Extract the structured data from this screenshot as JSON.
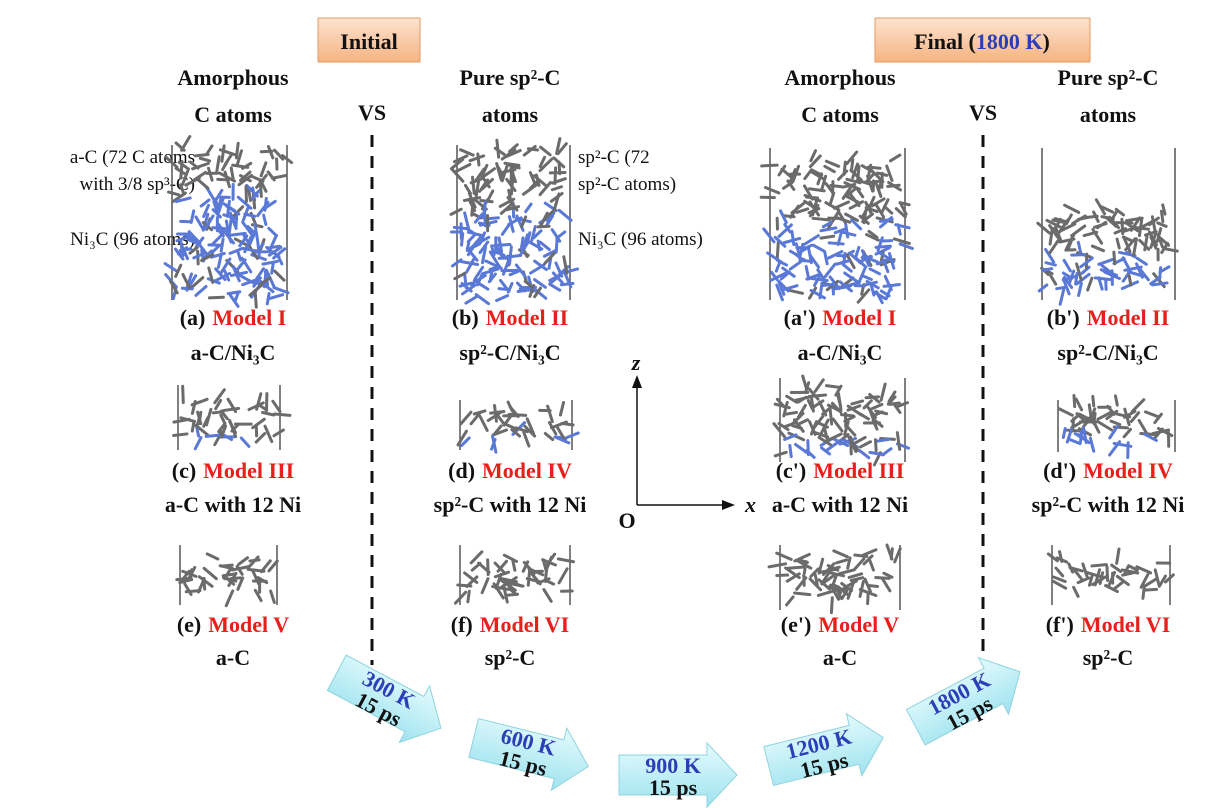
{
  "headers": {
    "initial": "Initial",
    "final": {
      "before": "Final (",
      "temperature": "1800 K",
      "after": ")"
    }
  },
  "columns": [
    {
      "line1": "Amorphous",
      "line2": "C atoms"
    },
    {
      "line1": "Pure sp²-C",
      "line2": "atoms"
    },
    {
      "line1": "Amorphous",
      "line2": "C atoms"
    },
    {
      "line1": "Pure sp²-C",
      "line2": "atoms"
    }
  ],
  "vs": [
    "VS",
    "VS"
  ],
  "annotations": {
    "left": [
      "a-C (72 C atoms",
      "with 3/8 sp³-C)",
      "Ni₃C (96 atoms)"
    ],
    "right": [
      "sp²-C (72",
      "sp²-C atoms)",
      "Ni₃C (96 atoms)"
    ]
  },
  "panels": [
    {
      "letter": "(a)",
      "model": "Model I",
      "description": "a-C/Ni₃C"
    },
    {
      "letter": "(b)",
      "model": "Model II",
      "description": "sp²-C/Ni₃C"
    },
    {
      "letter": "(a')",
      "model": "Model I",
      "description": "a-C/Ni₃C"
    },
    {
      "letter": "(b')",
      "model": "Model II",
      "description": "sp²-C/Ni₃C"
    },
    {
      "letter": "(c)",
      "model": "Model III",
      "description": "a-C with 12 Ni"
    },
    {
      "letter": "(d)",
      "model": "Model IV",
      "description": "sp²-C with 12 Ni"
    },
    {
      "letter": "(c')",
      "model": "Model III",
      "description": "a-C with 12 Ni"
    },
    {
      "letter": "(d')",
      "model": "Model IV",
      "description": "sp²-C with 12 Ni"
    },
    {
      "letter": "(e)",
      "model": "Model V",
      "description": "a-C"
    },
    {
      "letter": "(f)",
      "model": "Model VI",
      "description": "sp²-C"
    },
    {
      "letter": "(e')",
      "model": "Model V",
      "description": "a-C"
    },
    {
      "letter": "(f')",
      "model": "Model VI",
      "description": "sp²-C"
    }
  ],
  "axes": {
    "z": "z",
    "x": "x",
    "origin": "O"
  },
  "steps": [
    {
      "temperature": "300 K",
      "time": "15 ps"
    },
    {
      "temperature": "600 K",
      "time": "15 ps"
    },
    {
      "temperature": "900 K",
      "time": "15 ps"
    },
    {
      "temperature": "1200 K",
      "time": "15 ps"
    },
    {
      "temperature": "1800 K",
      "time": "15 ps"
    }
  ]
}
